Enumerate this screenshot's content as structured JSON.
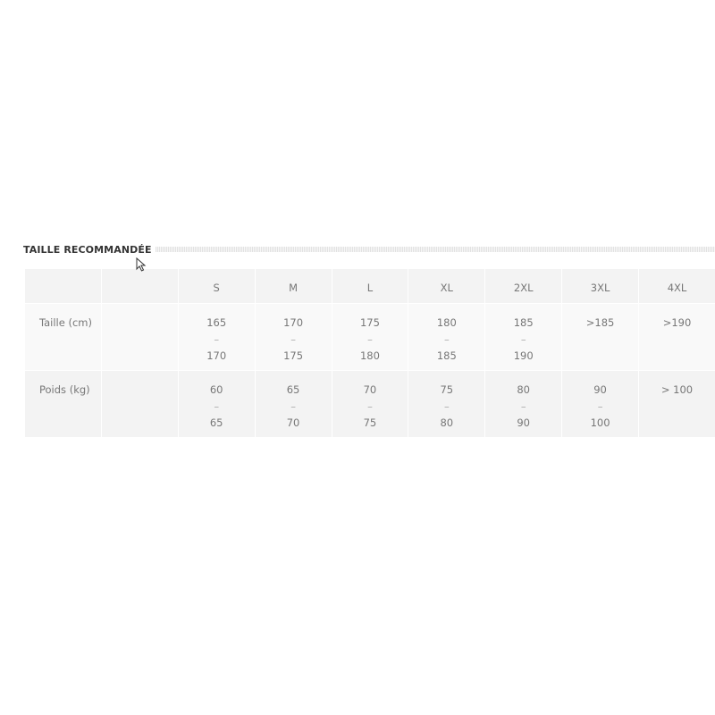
{
  "section_title": "TAILLE RECOMMANDÉE",
  "table": {
    "headers": [
      "",
      "",
      "S",
      "M",
      "L",
      "XL",
      "2XL",
      "3XL",
      "4XL"
    ],
    "rows": [
      {
        "label": "Taille (cm)",
        "cells": [
          [
            "165",
            "–",
            "170"
          ],
          [
            "170",
            "–",
            "175"
          ],
          [
            "175",
            "–",
            "180"
          ],
          [
            "180",
            "–",
            "185"
          ],
          [
            "185",
            "–",
            "190"
          ],
          [
            ">185"
          ],
          [
            ">190"
          ]
        ]
      },
      {
        "label": "Poids (kg)",
        "cells": [
          [
            "60",
            "–",
            "65"
          ],
          [
            "65",
            "–",
            "70"
          ],
          [
            "70",
            "–",
            "75"
          ],
          [
            "75",
            "–",
            "80"
          ],
          [
            "80",
            "–",
            "90"
          ],
          [
            "90",
            "–",
            "100"
          ],
          [
            "> 100"
          ]
        ]
      }
    ]
  },
  "colors": {
    "header_bg": "#f3f3f3",
    "row_alt_bg": "#f9f9f9",
    "text": "#777777"
  },
  "icons": {
    "cursor": "mouse-pointer-icon"
  }
}
